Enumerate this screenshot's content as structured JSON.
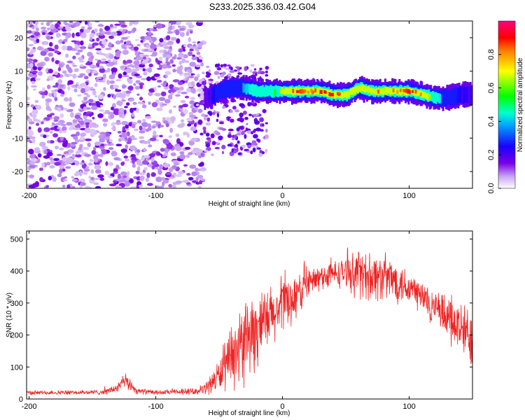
{
  "title": "S233.2025.336.03.42.G04",
  "chart_data": [
    {
      "type": "heatmap",
      "name": "spectrogram",
      "xlabel": "Height of straight line (km)",
      "ylabel": "Frequency (Hz)",
      "xlim": [
        -202,
        150
      ],
      "ylim": [
        -25,
        25
      ],
      "xticks": [
        -200,
        -100,
        0,
        100
      ],
      "yticks": [
        -20,
        -10,
        0,
        10,
        20
      ],
      "colorbar": {
        "label": "Normalized spectral amplitude",
        "range": [
          0,
          1
        ],
        "ticks": [
          0.0,
          0.2,
          0.4,
          0.6,
          0.8
        ]
      },
      "ridge": {
        "description_x": [
          -60,
          -50,
          -40,
          -30,
          -20,
          -10,
          0,
          10,
          20,
          30,
          40,
          50,
          60,
          70,
          80,
          90,
          100,
          110,
          120,
          130,
          140,
          150
        ],
        "frequency": [
          2,
          4,
          5,
          5,
          4,
          4,
          4,
          4,
          4,
          4,
          3,
          3,
          5,
          4,
          4,
          4,
          4,
          3,
          2,
          2,
          3,
          3
        ],
        "peak_amplitude": [
          0.2,
          0.3,
          0.3,
          0.4,
          0.5,
          0.5,
          0.7,
          0.9,
          0.8,
          0.9,
          0.9,
          0.8,
          0.7,
          0.8,
          0.9,
          0.8,
          0.9,
          0.8,
          0.5,
          0.3,
          0.25,
          0.2
        ]
      },
      "noise_region_x": [
        -202,
        -62
      ],
      "noise_amplitude": 0.15
    },
    {
      "type": "line",
      "name": "snr",
      "xlabel": "Height of straight line (km)",
      "ylabel": "SNR (10 * v/v)",
      "xlim": [
        -202,
        150
      ],
      "ylim": [
        0,
        525
      ],
      "xticks": [
        -200,
        -100,
        0,
        100
      ],
      "yticks": [
        0,
        100,
        200,
        300,
        400,
        500
      ],
      "color": "#ee2222",
      "series": [
        {
          "name": "SNR",
          "x": [
            -202,
            -180,
            -160,
            -140,
            -130,
            -125,
            -120,
            -115,
            -100,
            -80,
            -65,
            -60,
            -50,
            -40,
            -30,
            -25,
            -20,
            -10,
            0,
            10,
            20,
            30,
            40,
            50,
            60,
            70,
            80,
            90,
            100,
            110,
            120,
            130,
            140,
            150
          ],
          "mean": [
            20,
            20,
            20,
            22,
            35,
            55,
            45,
            25,
            20,
            22,
            25,
            35,
            75,
            120,
            180,
            200,
            210,
            250,
            290,
            320,
            360,
            380,
            390,
            395,
            390,
            385,
            380,
            370,
            350,
            320,
            280,
            250,
            220,
            190
          ],
          "spread": [
            8,
            8,
            8,
            10,
            20,
            30,
            25,
            12,
            8,
            10,
            12,
            25,
            60,
            110,
            150,
            150,
            140,
            120,
            110,
            90,
            60,
            50,
            50,
            55,
            90,
            90,
            90,
            80,
            70,
            70,
            70,
            80,
            100,
            110
          ]
        }
      ]
    }
  ]
}
